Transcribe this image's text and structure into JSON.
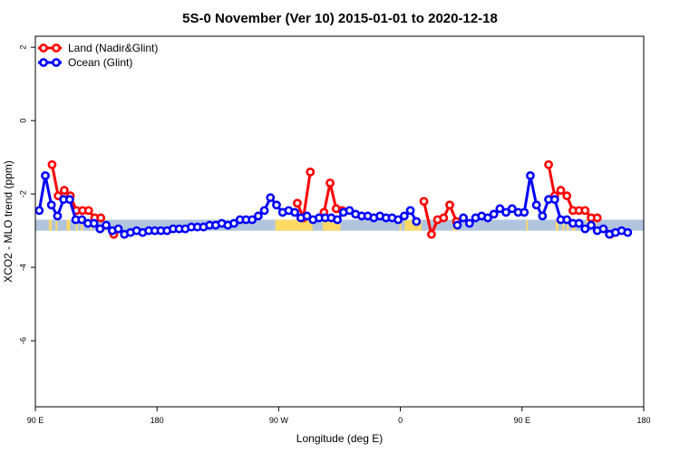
{
  "chart_data": {
    "type": "line",
    "title": "5S-0 November (Ver 10)   2015-01-01 to 2020-12-18",
    "xlabel": "Longitude (deg E)",
    "ylabel": "XCO2 - MLO trend (ppm)",
    "xlim": [
      90,
      450
    ],
    "ylim": [
      -7.8,
      2.3
    ],
    "x_ticks": [
      {
        "value": 90,
        "label": "90 E"
      },
      {
        "value": 162,
        "label": "180"
      },
      {
        "value": 234,
        "label": "90 W"
      },
      {
        "value": 306,
        "label": "0"
      },
      {
        "value": 378,
        "label": "90 E"
      },
      {
        "value": 450,
        "label": "180"
      }
    ],
    "y_ticks": [
      {
        "value": 2,
        "label": "2"
      },
      {
        "value": 0,
        "label": "0"
      },
      {
        "value": -2,
        "label": "-2"
      },
      {
        "value": -4,
        "label": "-4"
      },
      {
        "value": -6,
        "label": "-6"
      }
    ],
    "grid": false,
    "legend_position": "top-left",
    "series": [
      {
        "name": "Land (Nadir&Glint)",
        "color": "#ff0000",
        "points": [
          {
            "x": 99.9,
            "y": -1.2
          },
          {
            "x": 103.5,
            "y": -2.05
          },
          {
            "x": 107.1,
            "y": -1.9
          },
          {
            "x": 110.7,
            "y": -2.05
          },
          {
            "x": 114.3,
            "y": -2.45
          },
          {
            "x": 117.9,
            "y": -2.45
          },
          {
            "x": 121.5,
            "y": -2.45
          },
          {
            "x": 125.1,
            "y": -2.65
          },
          {
            "x": 128.7,
            "y": -2.65
          },
          {
            "x": 136.4,
            "y": -3.1
          },
          {
            "x": 245.0,
            "y": -2.25
          },
          {
            "x": 248.6,
            "y": -2.65
          },
          {
            "x": 252.7,
            "y": -1.4
          },
          {
            "x": 260.8,
            "y": -2.5
          },
          {
            "x": 264.4,
            "y": -1.7
          },
          {
            "x": 268.0,
            "y": -2.4
          },
          {
            "x": 271.6,
            "y": -2.45
          },
          {
            "x": 319.9,
            "y": -2.2
          },
          {
            "x": 324.4,
            "y": -3.1
          },
          {
            "x": 328.0,
            "y": -2.7
          },
          {
            "x": 331.6,
            "y": -2.65
          },
          {
            "x": 335.2,
            "y": -2.3
          },
          {
            "x": 339.2,
            "y": -2.75
          },
          {
            "x": 393.7,
            "y": -1.2
          },
          {
            "x": 397.3,
            "y": -2.05
          },
          {
            "x": 400.9,
            "y": -1.9
          },
          {
            "x": 404.5,
            "y": -2.05
          },
          {
            "x": 408.1,
            "y": -2.45
          },
          {
            "x": 411.7,
            "y": -2.45
          },
          {
            "x": 415.3,
            "y": -2.45
          },
          {
            "x": 418.9,
            "y": -2.65
          },
          {
            "x": 422.5,
            "y": -2.65
          },
          {
            "x": 430.2,
            "y": -3.1
          }
        ]
      },
      {
        "name": "Ocean (Glint)",
        "color": "#0000ff",
        "points": [
          {
            "x": 92.3,
            "y": -2.45
          },
          {
            "x": 95.9,
            "y": -1.5
          },
          {
            "x": 99.5,
            "y": -2.3
          },
          {
            "x": 103.1,
            "y": -2.6
          },
          {
            "x": 106.7,
            "y": -2.15
          },
          {
            "x": 110.3,
            "y": -2.15
          },
          {
            "x": 113.9,
            "y": -2.7
          },
          {
            "x": 117.5,
            "y": -2.7
          },
          {
            "x": 121.1,
            "y": -2.8
          },
          {
            "x": 124.7,
            "y": -2.8
          },
          {
            "x": 128.3,
            "y": -2.95
          },
          {
            "x": 131.9,
            "y": -2.85
          },
          {
            "x": 135.5,
            "y": -3.0
          },
          {
            "x": 139.1,
            "y": -2.95
          },
          {
            "x": 142.7,
            "y": -3.1
          },
          {
            "x": 146.3,
            "y": -3.05
          },
          {
            "x": 149.9,
            "y": -3.0
          },
          {
            "x": 153.5,
            "y": -3.05
          },
          {
            "x": 157.1,
            "y": -3.0
          },
          {
            "x": 160.7,
            "y": -3.0
          },
          {
            "x": 164.3,
            "y": -3.0
          },
          {
            "x": 167.9,
            "y": -3.0
          },
          {
            "x": 171.5,
            "y": -2.95
          },
          {
            "x": 175.1,
            "y": -2.95
          },
          {
            "x": 178.7,
            "y": -2.95
          },
          {
            "x": 182.3,
            "y": -2.9
          },
          {
            "x": 185.9,
            "y": -2.9
          },
          {
            "x": 189.5,
            "y": -2.9
          },
          {
            "x": 193.1,
            "y": -2.85
          },
          {
            "x": 196.7,
            "y": -2.85
          },
          {
            "x": 200.3,
            "y": -2.8
          },
          {
            "x": 203.9,
            "y": -2.85
          },
          {
            "x": 207.5,
            "y": -2.8
          },
          {
            "x": 211.1,
            "y": -2.7
          },
          {
            "x": 214.7,
            "y": -2.7
          },
          {
            "x": 218.3,
            "y": -2.7
          },
          {
            "x": 221.9,
            "y": -2.6
          },
          {
            "x": 225.5,
            "y": -2.45
          },
          {
            "x": 229.1,
            "y": -2.1
          },
          {
            "x": 232.7,
            "y": -2.3
          },
          {
            "x": 236.3,
            "y": -2.5
          },
          {
            "x": 239.9,
            "y": -2.45
          },
          {
            "x": 243.5,
            "y": -2.5
          },
          {
            "x": 247.1,
            "y": -2.65
          },
          {
            "x": 250.7,
            "y": -2.6
          },
          {
            "x": 254.3,
            "y": -2.7
          },
          {
            "x": 257.9,
            "y": -2.65
          },
          {
            "x": 261.5,
            "y": -2.65
          },
          {
            "x": 265.1,
            "y": -2.65
          },
          {
            "x": 268.7,
            "y": -2.7
          },
          {
            "x": 272.3,
            "y": -2.5
          },
          {
            "x": 275.9,
            "y": -2.45
          },
          {
            "x": 279.5,
            "y": -2.55
          },
          {
            "x": 283.1,
            "y": -2.6
          },
          {
            "x": 286.7,
            "y": -2.6
          },
          {
            "x": 290.3,
            "y": -2.65
          },
          {
            "x": 293.9,
            "y": -2.6
          },
          {
            "x": 297.5,
            "y": -2.65
          },
          {
            "x": 301.1,
            "y": -2.65
          },
          {
            "x": 304.7,
            "y": -2.7
          },
          {
            "x": 308.3,
            "y": -2.6
          },
          {
            "x": 311.9,
            "y": -2.45
          },
          {
            "x": 315.5,
            "y": -2.75
          },
          {
            "x": 339.7,
            "y": -2.85
          },
          {
            "x": 343.3,
            "y": -2.65
          },
          {
            "x": 346.9,
            "y": -2.8
          },
          {
            "x": 350.5,
            "y": -2.65
          },
          {
            "x": 354.1,
            "y": -2.6
          },
          {
            "x": 357.7,
            "y": -2.65
          },
          {
            "x": 361.3,
            "y": -2.55
          },
          {
            "x": 364.9,
            "y": -2.4
          },
          {
            "x": 368.5,
            "y": -2.5
          },
          {
            "x": 372.1,
            "y": -2.4
          },
          {
            "x": 375.7,
            "y": -2.5
          },
          {
            "x": 379.3,
            "y": -2.5
          },
          {
            "x": 382.9,
            "y": -1.5
          },
          {
            "x": 386.5,
            "y": -2.3
          },
          {
            "x": 390.1,
            "y": -2.6
          },
          {
            "x": 393.7,
            "y": -2.15
          },
          {
            "x": 397.3,
            "y": -2.15
          },
          {
            "x": 400.9,
            "y": -2.7
          },
          {
            "x": 404.5,
            "y": -2.7
          },
          {
            "x": 408.1,
            "y": -2.8
          },
          {
            "x": 411.7,
            "y": -2.8
          },
          {
            "x": 415.3,
            "y": -2.95
          },
          {
            "x": 418.9,
            "y": -2.85
          },
          {
            "x": 422.5,
            "y": -3.0
          },
          {
            "x": 426.1,
            "y": -2.95
          },
          {
            "x": 429.7,
            "y": -3.1
          },
          {
            "x": 433.3,
            "y": -3.05
          },
          {
            "x": 436.9,
            "y": -3.0
          },
          {
            "x": 440.5,
            "y": -3.05
          }
        ]
      }
    ],
    "background": {
      "ocean_color": "#b0c4de",
      "land_color": "#ffd966",
      "band_y": [
        -3.0,
        -2.7
      ],
      "land_ranges": [
        [
          98.0,
          99.5
        ],
        [
          102.0,
          103.0
        ],
        [
          108.5,
          110.5
        ],
        [
          114.0,
          115.0
        ],
        [
          117.0,
          118.0
        ],
        [
          122.5,
          123.5
        ],
        [
          131.0,
          132.0
        ],
        [
          232.0,
          254.0
        ],
        [
          260.0,
          270.5
        ],
        [
          305.5,
          306.5
        ],
        [
          308.5,
          318.5
        ],
        [
          337.0,
          340.0
        ],
        [
          380.5,
          381.5
        ],
        [
          398.0,
          399.5
        ],
        [
          402.0,
          403.0
        ],
        [
          404.5,
          405.5
        ],
        [
          407.5,
          409.5
        ],
        [
          416.0,
          417.0
        ],
        [
          421.0,
          422.0
        ]
      ]
    }
  }
}
